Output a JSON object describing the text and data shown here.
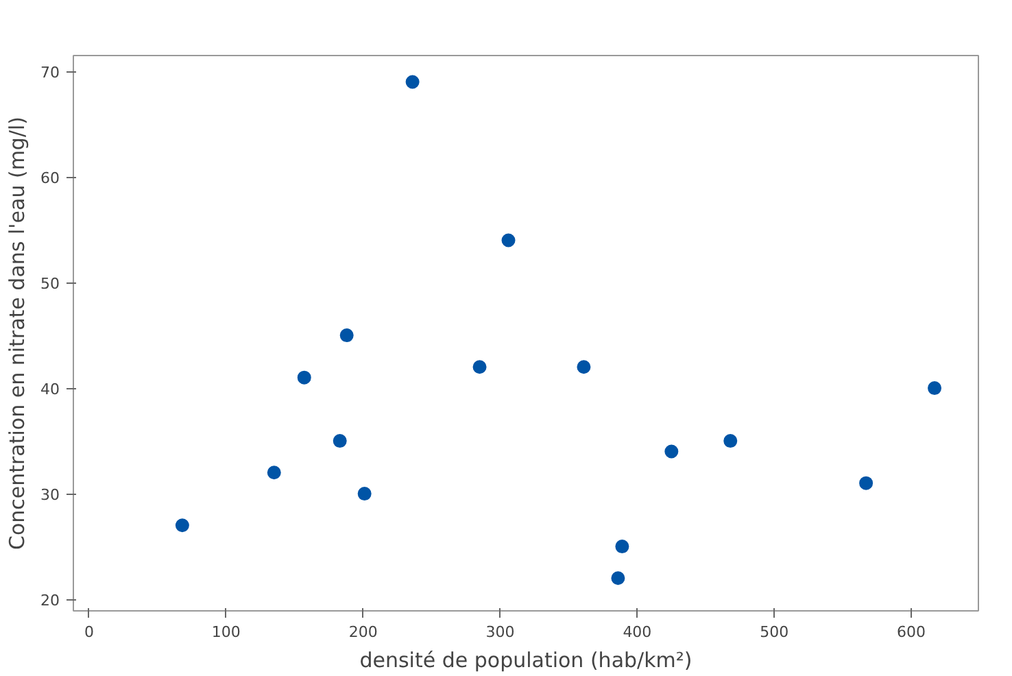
{
  "chart_data": {
    "type": "scatter",
    "xlabel": "densité de population (hab/km²)",
    "ylabel": "Concentration en nitrate dans l'eau (mg/l)",
    "x": [
      68,
      135,
      157,
      183,
      188,
      201,
      236,
      285,
      306,
      361,
      386,
      389,
      425,
      468,
      567,
      617
    ],
    "values": [
      27,
      32,
      41,
      35,
      45,
      30,
      69,
      42,
      54,
      42,
      22,
      25,
      34,
      35,
      31,
      40
    ],
    "color": "#0054a6",
    "marker": "circle",
    "grid": false,
    "xlim": [
      -11.5,
      649
    ],
    "ylim": [
      18.9,
      71.5
    ],
    "xticks": [
      0,
      100,
      200,
      300,
      400,
      500,
      600
    ],
    "yticks": [
      20,
      30,
      40,
      50,
      60,
      70
    ]
  }
}
